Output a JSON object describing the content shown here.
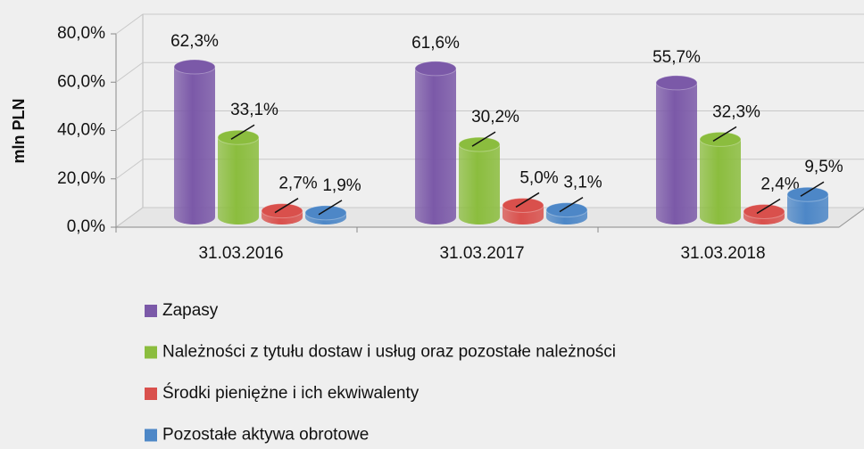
{
  "chart_data": {
    "type": "bar3d",
    "y_label": "mln PLN",
    "categories": [
      "31.03.2016",
      "31.03.2017",
      "31.03.2018"
    ],
    "series": [
      {
        "name": "Zapasy",
        "color": "#7b59a8",
        "values": [
          62.3,
          61.6,
          55.7
        ],
        "value_labels": [
          "62,3%",
          "61,6%",
          "55,7%"
        ]
      },
      {
        "name": "Należności z tytułu dostaw i usług oraz pozostałe należności",
        "color": "#8bbd3e",
        "values": [
          33.1,
          30.2,
          32.3
        ],
        "value_labels": [
          "33,1%",
          "30,2%",
          "32,3%"
        ]
      },
      {
        "name": "Środki pieniężne i ich ekwiwalenty",
        "color": "#d9504c",
        "values": [
          2.7,
          5.0,
          2.4
        ],
        "value_labels": [
          "2,7%",
          "5,0%",
          "2,4%"
        ]
      },
      {
        "name": "Pozostałe aktywa obrotowe",
        "color": "#4d87c7",
        "values": [
          1.9,
          3.1,
          9.5
        ],
        "value_labels": [
          "1,9%",
          "3,1%",
          "9,5%"
        ]
      }
    ],
    "ylim": [
      0,
      80
    ],
    "yticks": [
      {
        "value": 0,
        "label": "0,0%"
      },
      {
        "value": 20,
        "label": "20,0%"
      },
      {
        "value": 40,
        "label": "40,0%"
      },
      {
        "value": 60,
        "label": "60,0%"
      },
      {
        "value": 80,
        "label": "80,0%"
      }
    ],
    "grid": true,
    "legend": "bottom"
  }
}
